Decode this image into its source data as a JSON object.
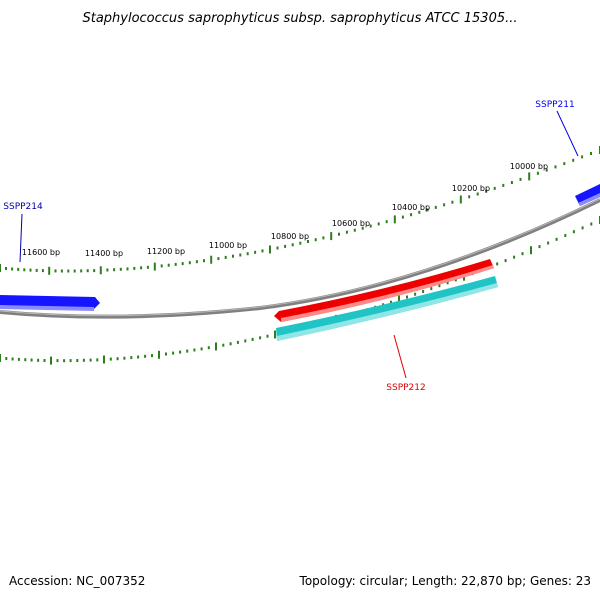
{
  "title": "Staphylococcus saprophyticus subsp. saprophyticus ATCC 15305...",
  "footer": {
    "accession": "Accession: NC_007352",
    "summary": "Topology: circular; Length: 22,870 bp; Genes: 23"
  },
  "tick_labels": [
    "11600 bp",
    "11400 bp",
    "11200 bp",
    "11000 bp",
    "10800 bp",
    "10600 bp",
    "10400 bp",
    "10200 bp",
    "10000 bp"
  ],
  "genes": [
    {
      "id": "ssp211",
      "label": "SSPP211",
      "color": "#0000ee"
    },
    {
      "id": "ssp212",
      "label": "SSPP212",
      "color": "#dd0000"
    },
    {
      "id": "ssp214",
      "label": "SSPP214",
      "color": "#0000aa"
    }
  ],
  "colors": {
    "backbone": "#888888",
    "tick": "#2e7d1f",
    "gene_blue": "#1515ff",
    "gene_red": "#ee0000",
    "gene_cyan": "#20c4c4"
  }
}
